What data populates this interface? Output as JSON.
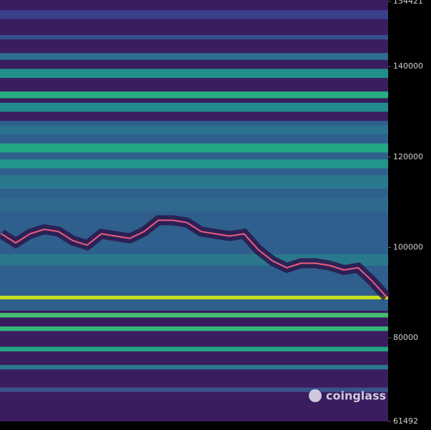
{
  "chart_data": {
    "type": "heatmap",
    "ylim": [
      61492,
      154421
    ],
    "yticks": [
      154421,
      140000,
      120000,
      100000,
      80000,
      61492
    ],
    "background": "#3a1d5e",
    "bands": [
      {
        "low": 86000,
        "high": 128000,
        "color": "#2f5f8c"
      },
      {
        "low": 150500,
        "high": 152500,
        "color": "#3b3f8a"
      },
      {
        "low": 146000,
        "high": 147000,
        "color": "#35508a"
      },
      {
        "low": 141500,
        "high": 143000,
        "color": "#2d6e8e"
      },
      {
        "low": 137500,
        "high": 139500,
        "color": "#21908d"
      },
      {
        "low": 133000,
        "high": 134500,
        "color": "#27ad81"
      },
      {
        "low": 130000,
        "high": 132000,
        "color": "#238a8d"
      },
      {
        "low": 125000,
        "high": 127000,
        "color": "#2c718e"
      },
      {
        "low": 121000,
        "high": 123000,
        "color": "#22a884"
      },
      {
        "low": 117500,
        "high": 119500,
        "color": "#22958b"
      },
      {
        "low": 113000,
        "high": 116000,
        "color": "#2a788e"
      },
      {
        "low": 108000,
        "high": 111000,
        "color": "#31688e"
      },
      {
        "low": 96000,
        "high": 98500,
        "color": "#2a788e"
      },
      {
        "low": 88500,
        "high": 89300,
        "color": "#c8e020"
      },
      {
        "low": 84500,
        "high": 85500,
        "color": "#42be71"
      },
      {
        "low": 81500,
        "high": 82500,
        "color": "#35b779"
      },
      {
        "low": 77000,
        "high": 78000,
        "color": "#22a884"
      },
      {
        "low": 73000,
        "high": 74000,
        "color": "#2a788e"
      },
      {
        "low": 68000,
        "high": 69000,
        "color": "#3b528b"
      }
    ],
    "price": {
      "color": "#f05a7e",
      "values": [
        103000,
        101000,
        103000,
        104000,
        103500,
        101500,
        100500,
        103000,
        102500,
        102000,
        103500,
        106000,
        106000,
        105500,
        103500,
        103000,
        102500,
        103000,
        99500,
        97000,
        95500,
        96500,
        96500,
        96000,
        95000,
        95500,
        92500,
        89000
      ]
    },
    "watermark": "coinglass"
  }
}
